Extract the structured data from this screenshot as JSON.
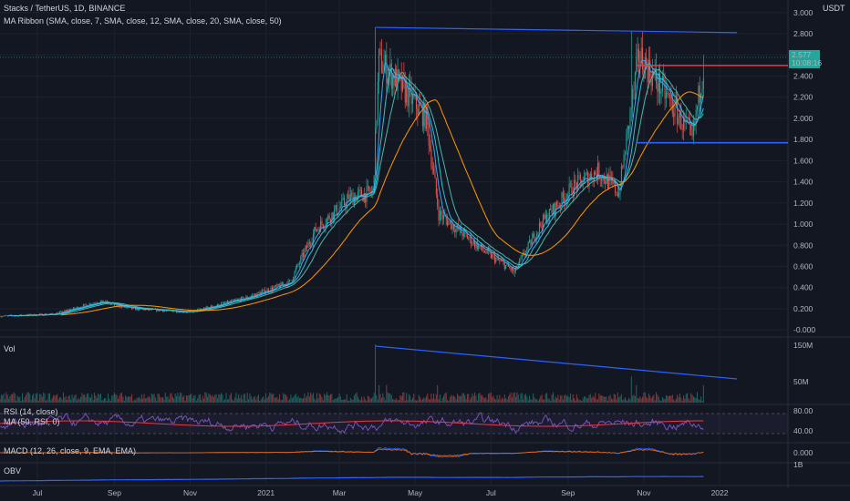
{
  "header": {
    "symbol": "Stacks / TetherUS, 1D, BINANCE",
    "ma_ribbon": "MA Ribbon (SMA, close, 7, SMA, close, 12, SMA, close, 20, SMA, close, 50)",
    "currency": "USDT"
  },
  "price_label": {
    "value": "2.577",
    "countdown": "10:08:16"
  },
  "panes": {
    "volume": {
      "label": "Vol",
      "ticks": [
        "150M",
        "50M"
      ]
    },
    "rsi": {
      "label": "RSI (14, close)",
      "ma_label": "MA (50, RSI, 0)",
      "ticks": [
        "80.00",
        "40.00"
      ]
    },
    "macd": {
      "label": "MACD (12, 26, close, 9, EMA, EMA)",
      "ticks": [
        "0.000"
      ]
    },
    "obv": {
      "label": "OBV",
      "ticks": [
        "1B"
      ]
    }
  },
  "colors": {
    "background": "#131722",
    "up": "#26a69a",
    "down": "#ef5350",
    "ma7": "#42a5f5",
    "ma12": "#26c6da",
    "ma20": "#4db6ac",
    "ma50": "#ff9800",
    "trendline": "#2962ff",
    "resistance": "#f23645",
    "rsi": "#7e57c2",
    "obv": "#2962ff"
  },
  "chart_data": {
    "type": "candlestick",
    "title": "Stacks / TetherUS, 1D, BINANCE",
    "x_labels": [
      "Jul",
      "Sep",
      "Nov",
      "2021",
      "Mar",
      "May",
      "Jul",
      "Sep",
      "Nov",
      "2022"
    ],
    "y_ticks": [
      "3.000",
      "2.800",
      "2.600",
      "2.400",
      "2.200",
      "2.000",
      "1.800",
      "1.600",
      "1.400",
      "1.200",
      "1.000",
      "0.800",
      "0.600",
      "0.400",
      "0.200",
      "-0.000"
    ],
    "ylim": [
      -0.05,
      3.05
    ],
    "price_path": [
      {
        "x": "2020-06-01",
        "close": 0.13
      },
      {
        "x": "2020-07-15",
        "close": 0.15
      },
      {
        "x": "2020-08-20",
        "close": 0.27
      },
      {
        "x": "2020-09-15",
        "close": 0.2
      },
      {
        "x": "2020-11-01",
        "close": 0.17
      },
      {
        "x": "2020-12-15",
        "close": 0.3
      },
      {
        "x": "2021-01-20",
        "close": 0.45
      },
      {
        "x": "2021-02-10",
        "close": 0.95
      },
      {
        "x": "2021-03-10",
        "close": 1.25
      },
      {
        "x": "2021-03-28",
        "close": 1.3
      },
      {
        "x": "2021-04-02",
        "close": 2.55
      },
      {
        "x": "2021-04-20",
        "close": 2.3
      },
      {
        "x": "2021-05-10",
        "close": 2.0
      },
      {
        "x": "2021-05-20",
        "close": 1.1
      },
      {
        "x": "2021-06-25",
        "close": 0.75
      },
      {
        "x": "2021-07-20",
        "close": 0.55
      },
      {
        "x": "2021-08-10",
        "close": 1.0
      },
      {
        "x": "2021-09-05",
        "close": 1.35
      },
      {
        "x": "2021-09-25",
        "close": 1.5
      },
      {
        "x": "2021-10-12",
        "close": 1.3
      },
      {
        "x": "2021-10-28",
        "close": 2.6
      },
      {
        "x": "2021-11-20",
        "close": 2.2
      },
      {
        "x": "2021-12-10",
        "close": 1.8
      },
      {
        "x": "2021-12-19",
        "close": 2.5
      }
    ],
    "annotations": [
      {
        "type": "trendline",
        "from": {
          "x": "2021-03-30",
          "y": 2.86
        },
        "to": {
          "x": "2022-01-15",
          "y": 2.81
        }
      },
      {
        "type": "horizontal",
        "y": 2.5,
        "color": "#f23645"
      },
      {
        "type": "horizontal",
        "y": 1.77,
        "color": "#2962ff"
      },
      {
        "type": "volume_trendline",
        "from": "2021-03-30",
        "to": "2022-01-15"
      }
    ],
    "grid": true
  }
}
